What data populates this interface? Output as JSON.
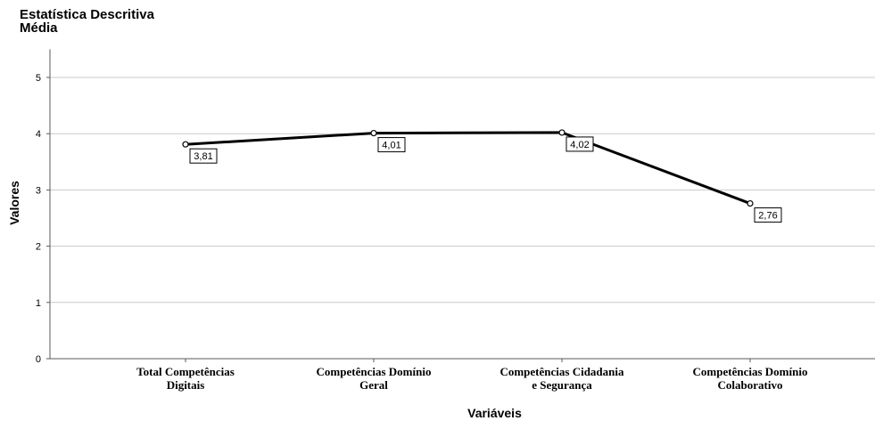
{
  "chart_data": {
    "type": "line",
    "title": "Estatística Descritiva",
    "subtitle": "Média",
    "xlabel": "Variáveis",
    "ylabel": "Valores",
    "ylim": [
      0,
      5.5
    ],
    "yticks": [
      0,
      1,
      2,
      3,
      4,
      5
    ],
    "grid": true,
    "categories": [
      [
        "Total Competências",
        "Digitais"
      ],
      [
        "Competências Domínio",
        "Geral"
      ],
      [
        "Competências Cidadania",
        "e Segurança"
      ],
      [
        "Competências Domínio",
        "Colaborativo"
      ]
    ],
    "values": [
      3.81,
      4.01,
      4.02,
      2.76
    ],
    "data_labels": [
      "3,81",
      "4,01",
      "4,02",
      "2,76"
    ],
    "colors": {
      "line": "#000000",
      "grid": "#c8c8c8",
      "axis": "#5a5a5a"
    }
  }
}
